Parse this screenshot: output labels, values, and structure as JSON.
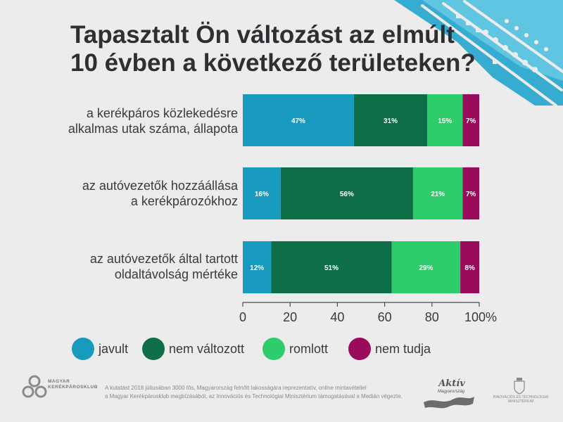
{
  "title_line1": "Tapasztalt Ön változást az elmúlt",
  "title_line2": "10 évben a következő területeken?",
  "colors": {
    "javult": "#1899be",
    "nem_valtozott": "#0d6e47",
    "romlott": "#2ecc6b",
    "nem_tudja": "#9a0b5b"
  },
  "chart_data": {
    "type": "bar",
    "orientation": "horizontal",
    "stacked": true,
    "categories": [
      [
        "a kerékpáros közlekedésre",
        "alkalmas utak száma, állapota"
      ],
      [
        "az autóvezetők hozzáállása",
        "a kerékpározókhoz"
      ],
      [
        "az autóvezetők által tartott",
        "oldaltávolság mértéke"
      ]
    ],
    "series": [
      {
        "name": "javult",
        "values": [
          47,
          16,
          12
        ],
        "labels": [
          "47%",
          "16%",
          "12%"
        ]
      },
      {
        "name": "nem változott",
        "values": [
          31,
          56,
          51
        ],
        "labels": [
          "31%",
          "56%",
          "51%"
        ]
      },
      {
        "name": "romlott",
        "values": [
          15,
          21,
          29
        ],
        "labels": [
          "15%",
          "21%",
          "29%"
        ]
      },
      {
        "name": "nem tudja",
        "values": [
          7,
          7,
          8
        ],
        "labels": [
          "7%",
          "7%",
          "8%"
        ]
      }
    ],
    "xlim": [
      0,
      100
    ],
    "x_ticks": [
      "0",
      "20",
      "40",
      "60",
      "80",
      "100%"
    ],
    "grid": false,
    "legend": "bottom"
  },
  "legend": [
    {
      "label": "javult",
      "color": "#1899be"
    },
    {
      "label": "nem változott",
      "color": "#0d6e47"
    },
    {
      "label": "romlott",
      "color": "#2ecc6b"
    },
    {
      "label": "nem tudja",
      "color": "#9a0b5b"
    }
  ],
  "footer": {
    "logo_line1": "MAGYAR",
    "logo_line2": "KERÉKPÁROSKLUB",
    "note_line1": "A kutatást 2018 júliusában 3000 fős, Magyarország felnőtt lakosságára reprezentatív, online mintavétellel",
    "note_line2": "a Magyar Kerékpárosklub megbízásából, az Innovációs és Technológiai Minisztérium támogatásával a Medián végezte.",
    "aktiv": "Aktív",
    "aktiv_sub": "Magyarország",
    "ministry_line1": "INNOVÁCIÓS ÉS TECHNOLÓGIAI",
    "ministry_line2": "MINISZTÉRIUM"
  }
}
